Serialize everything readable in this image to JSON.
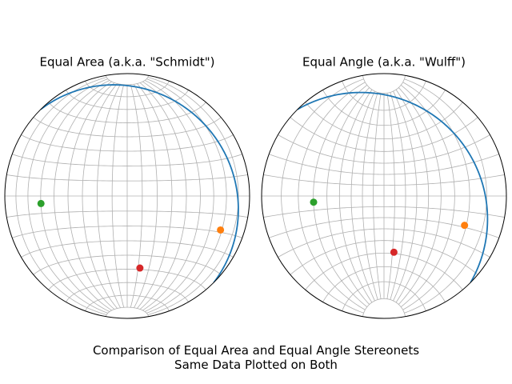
{
  "chart_data": [
    {
      "type": "stereonet",
      "projection": "equal_area",
      "title": "Equal Area (a.k.a. \"Schmidt\")",
      "grid": true,
      "planes": [
        {
          "strike": 315,
          "dip": 15,
          "color": "#1f77b4"
        }
      ],
      "points": [
        {
          "bearing": 110,
          "plunge": 20,
          "color": "#ff7f0e"
        },
        {
          "bearing": 265,
          "plunge": 30,
          "color": "#2ca02c"
        },
        {
          "bearing": 170,
          "plunge": 40,
          "color": "#d62728"
        }
      ]
    },
    {
      "type": "stereonet",
      "projection": "equal_angle",
      "title": "Equal Angle (a.k.a. \"Wulff\")",
      "grid": true,
      "planes": [
        {
          "strike": 315,
          "dip": 15,
          "color": "#1f77b4"
        }
      ],
      "points": [
        {
          "bearing": 110,
          "plunge": 20,
          "color": "#ff7f0e"
        },
        {
          "bearing": 265,
          "plunge": 30,
          "color": "#2ca02c"
        },
        {
          "bearing": 170,
          "plunge": 40,
          "color": "#d62728"
        }
      ]
    }
  ],
  "figure_title": "Comparison of Equal Area and Equal Angle Stereonets\nSame Data Plotted on Both"
}
